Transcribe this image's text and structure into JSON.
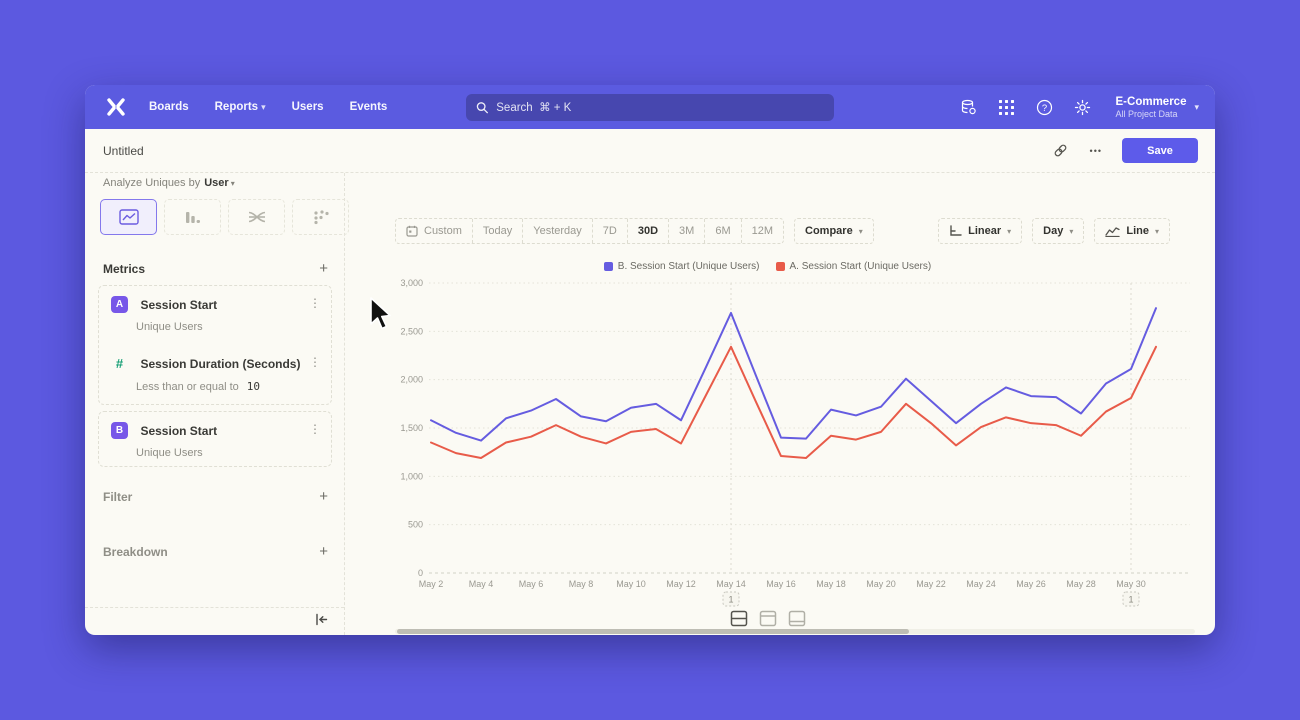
{
  "nav": {
    "menu": [
      "Boards",
      "Reports",
      "Users",
      "Events"
    ],
    "search_placeholder": "Search  ⌘ + K",
    "project": {
      "name": "E-Commerce",
      "scope": "All Project Data"
    }
  },
  "header": {
    "title": "Untitled",
    "more": "•••",
    "save": "Save"
  },
  "sidebar": {
    "analyze_prefix": "Analyze Uniques by",
    "analyze_value": "User",
    "metrics_title": "Metrics",
    "metrics": [
      {
        "badge": "A",
        "title": "Session Start",
        "subtitle": "Unique Users"
      },
      {
        "badge": "#",
        "title": "Session Duration (Seconds)",
        "subtitle_prefix": "Less than or equal to",
        "subtitle_value": "10"
      },
      {
        "badge": "B",
        "title": "Session Start",
        "subtitle": "Unique Users"
      }
    ],
    "filter_title": "Filter",
    "breakdown_title": "Breakdown"
  },
  "toolbar": {
    "ranges": [
      "Custom",
      "Today",
      "Yesterday",
      "7D",
      "30D",
      "3M",
      "6M",
      "12M"
    ],
    "selected_range": "30D",
    "compare": "Compare",
    "scale": "Linear",
    "interval": "Day",
    "chart_style": "Line"
  },
  "colors": {
    "accent": "#5b5be0",
    "badge_purple": "#7757e8",
    "metric_green": "#18a077",
    "series_b": "#655ce0",
    "series_a": "#e85b49"
  },
  "chart_data": {
    "type": "line",
    "title": "",
    "xlabel": "",
    "ylabel": "",
    "ylim": [
      0,
      3000
    ],
    "grid": true,
    "legend_position": "top",
    "x": [
      "May 2",
      "May 3",
      "May 4",
      "May 5",
      "May 6",
      "May 7",
      "May 8",
      "May 9",
      "May 10",
      "May 11",
      "May 12",
      "May 13",
      "May 14",
      "May 15",
      "May 16",
      "May 17",
      "May 18",
      "May 19",
      "May 20",
      "May 21",
      "May 22",
      "May 23",
      "May 24",
      "May 25",
      "May 26",
      "May 27",
      "May 28",
      "May 29",
      "May 30",
      "May 31"
    ],
    "yticks": [
      {
        "value": 0,
        "label": "0"
      },
      {
        "value": 500,
        "label": "500"
      },
      {
        "value": 1000,
        "label": "1,000"
      },
      {
        "value": 1500,
        "label": "1,500"
      },
      {
        "value": 2000,
        "label": "2,000"
      },
      {
        "value": 2500,
        "label": "2,500"
      },
      {
        "value": 3000,
        "label": "3,000"
      }
    ],
    "series": [
      {
        "name": "A. Session Start (Unique Users)",
        "color": "#e85b49",
        "values": [
          1350,
          1240,
          1190,
          1350,
          1410,
          1530,
          1410,
          1340,
          1460,
          1490,
          1340,
          1840,
          2340,
          1770,
          1210,
          1190,
          1420,
          1380,
          1460,
          1750,
          1550,
          1320,
          1510,
          1610,
          1550,
          1530,
          1420,
          1670,
          1810,
          2340
        ]
      },
      {
        "name": "B. Session Start (Unique Users)",
        "color": "#655ce0",
        "values": [
          1580,
          1450,
          1370,
          1600,
          1680,
          1800,
          1620,
          1570,
          1710,
          1750,
          1580,
          2130,
          2690,
          2040,
          1400,
          1390,
          1690,
          1630,
          1720,
          2010,
          1780,
          1550,
          1750,
          1920,
          1830,
          1820,
          1650,
          1960,
          2110,
          2740
        ]
      }
    ],
    "legend": [
      {
        "label": "B. Session Start (Unique Users)",
        "color": "#655ce0"
      },
      {
        "label": "A. Session Start (Unique Users)",
        "color": "#e85b49"
      }
    ],
    "annotations": [
      {
        "index": 12,
        "date": "May 14",
        "label": "1"
      },
      {
        "index": 28,
        "date": "May 30",
        "label": "1"
      }
    ]
  }
}
